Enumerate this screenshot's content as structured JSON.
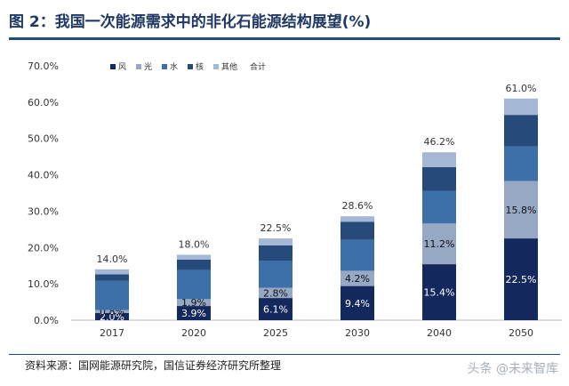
{
  "header": {
    "title": "图 2：我国一次能源需求中的非化石能源结构展望(%)"
  },
  "footer": {
    "source": "资料来源：国网能源研究院，国信证券经济研究所整理",
    "watermark": "头条 @未来智库"
  },
  "colors": {
    "wind": "#13285c",
    "solar": "#97a8c4",
    "hydro": "#3d6fa8",
    "nuclear": "#264a7a",
    "other": "#a4b8d6"
  },
  "chart_data": {
    "type": "bar",
    "stacked": true,
    "title": "",
    "xlabel": "",
    "ylabel": "",
    "categories": [
      "2017",
      "2020",
      "2025",
      "2030",
      "2040",
      "2050"
    ],
    "ylim": [
      0,
      70
    ],
    "yticks": [
      "0.0%",
      "10.0%",
      "20.0%",
      "30.0%",
      "40.0%",
      "50.0%",
      "60.0%",
      "70.0%"
    ],
    "grid": false,
    "legend_position": "top-left",
    "legend": [
      "风",
      "光",
      "水",
      "核",
      "其他",
      "合计"
    ],
    "series": [
      {
        "name": "风",
        "color_key": "wind",
        "values": [
          2.0,
          3.9,
          6.1,
          9.4,
          15.4,
          22.5
        ],
        "labels": [
          "2.0%",
          "3.9%",
          "6.1%",
          "9.4%",
          "15.4%",
          "22.5%"
        ]
      },
      {
        "name": "光",
        "color_key": "solar",
        "values": [
          0.8,
          1.9,
          2.8,
          4.2,
          11.2,
          15.8
        ],
        "labels": [
          "0.8%",
          "1.9%",
          "2.8%",
          "4.2%",
          "11.2%",
          "15.8%"
        ]
      },
      {
        "name": "水",
        "color_key": "hydro",
        "values": [
          8.0,
          8.0,
          7.5,
          8.5,
          9.0,
          9.5
        ]
      },
      {
        "name": "核",
        "color_key": "nuclear",
        "values": [
          1.8,
          2.9,
          4.2,
          5.0,
          6.5,
          8.7
        ]
      },
      {
        "name": "其他",
        "color_key": "other",
        "values": [
          1.4,
          1.3,
          1.9,
          1.5,
          4.1,
          4.5
        ]
      }
    ],
    "totals": {
      "name": "合计",
      "values": [
        14.0,
        18.0,
        22.5,
        28.6,
        46.2,
        61.0
      ],
      "labels": [
        "14.0%",
        "18.0%",
        "22.5%",
        "28.6%",
        "46.2%",
        "61.0%"
      ]
    }
  }
}
